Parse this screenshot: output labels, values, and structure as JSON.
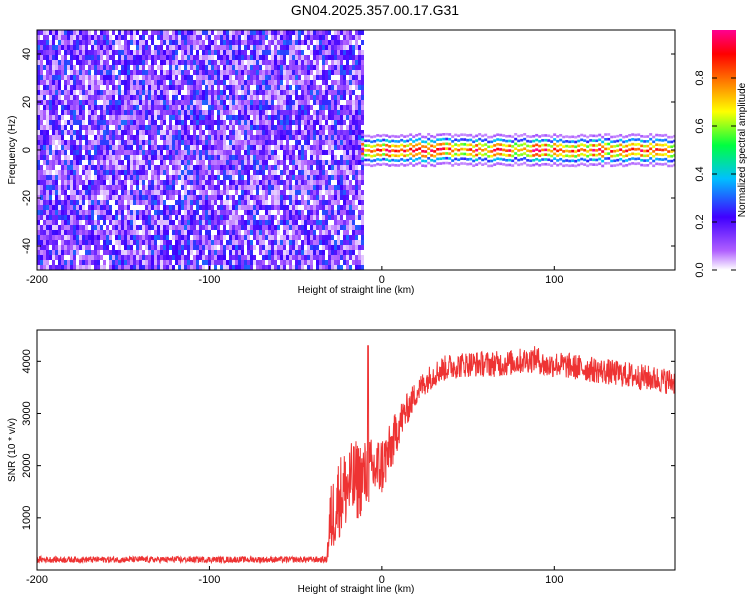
{
  "title": "GN04.2025.357.00.17.G31",
  "chart_data": [
    {
      "type": "heatmap",
      "name": "spectrogram",
      "xlabel": "Height of straight line (km)",
      "ylabel": "Frequency (Hz)",
      "xlim": [
        -200,
        170
      ],
      "ylim": [
        -50,
        50
      ],
      "xticks": [
        -200,
        -100,
        0,
        100
      ],
      "xtick_labels": [
        "-200",
        "-100",
        "0",
        "100"
      ],
      "yticks": [
        40,
        20,
        0,
        -20,
        -40
      ],
      "ytick_labels": [
        "40",
        "20",
        "0",
        "-20",
        "-40"
      ],
      "noise_region_x": [
        -200,
        -12
      ],
      "signal_region_x": [
        -12,
        170
      ],
      "signal_center_hz": 0,
      "signal_width_hz": 4,
      "colorbar": {
        "label": "Normalized spectral amplitude",
        "range": [
          0,
          1
        ],
        "ticks": [
          0.0,
          0.2,
          0.4,
          0.6,
          0.8
        ],
        "tick_labels": [
          "0.0",
          "0.2",
          "0.4",
          "0.6",
          "0.8"
        ],
        "colors": [
          "#ffffff",
          "#b060ff",
          "#4000ff",
          "#00c0ff",
          "#00ff40",
          "#ffff00",
          "#ff8000",
          "#ff0000",
          "#ff0090"
        ]
      }
    },
    {
      "type": "line",
      "name": "snr",
      "xlabel": "Height of straight line (km)",
      "ylabel": "SNR (10 * v/v)",
      "xlim": [
        -200,
        170
      ],
      "ylim": [
        0,
        4600
      ],
      "xticks": [
        -200,
        -100,
        0,
        100
      ],
      "xtick_labels": [
        "-200",
        "-100",
        "0",
        "100"
      ],
      "yticks": [
        1000,
        2000,
        3000,
        4000
      ],
      "ytick_labels": [
        "1000",
        "2000",
        "3000",
        "4000"
      ],
      "line_color": "#ee3333",
      "trend_x": [
        -200,
        -150,
        -100,
        -50,
        -32,
        -30,
        -25,
        -20,
        -15,
        -10,
        -5,
        0,
        5,
        10,
        15,
        20,
        25,
        30,
        35,
        40,
        50,
        60,
        70,
        80,
        90,
        95,
        100,
        110,
        120,
        130,
        140,
        150,
        160,
        170
      ],
      "trend_y": [
        200,
        200,
        200,
        200,
        200,
        900,
        1400,
        1600,
        1700,
        1800,
        1900,
        2000,
        2300,
        2800,
        3100,
        3400,
        3600,
        3750,
        3850,
        3900,
        3950,
        3950,
        3950,
        4000,
        4050,
        3900,
        3950,
        3900,
        3850,
        3800,
        3750,
        3700,
        3650,
        3600
      ],
      "noise_amplitude": [
        60,
        60,
        60,
        60,
        60,
        700,
        800,
        800,
        800,
        700,
        650,
        600,
        500,
        400,
        300,
        250,
        250,
        250,
        250,
        250,
        250,
        250,
        250,
        250,
        250,
        250,
        250,
        250,
        250,
        250,
        250,
        250,
        250,
        250
      ],
      "spike": {
        "x": -8,
        "y": 4300
      }
    }
  ]
}
